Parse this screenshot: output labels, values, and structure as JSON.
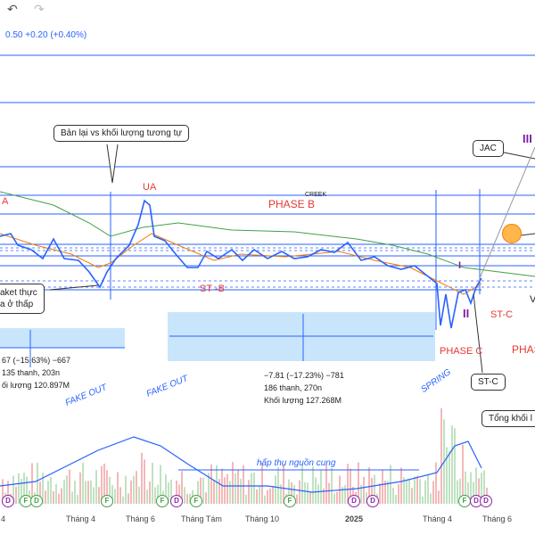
{
  "toolbar": {
    "undo_icon": "undo-icon",
    "redo_icon": "redo-icon"
  },
  "price_change": "0.50  +0.20 (+0.40%)",
  "annotations": {
    "retest": "Bản lại vs khối lượng tương tự",
    "jac": "JAC",
    "baket_line1": "aket thực",
    "baket_line2": "a ở thấp",
    "st_c_box": "ST-C",
    "tong_khoi": "Tổng khối l"
  },
  "labels": {
    "ua": "UA",
    "a": "A",
    "phase_b": "PHASE B",
    "creek": "CREEK",
    "st_b": "ST -B",
    "st_c": "ST-C",
    "phase_c": "PHASE C",
    "phas": "PHAS",
    "three": "III",
    "one": "I",
    "two": "II",
    "v": "V"
  },
  "italic_labels": {
    "fake_out_1": "FAKE OUT",
    "fake_out_2": "FAKE OUT",
    "spring": "SPRING",
    "absorb": "hấp thụ nguồn cung"
  },
  "stats_left": [
    "67 (−15.63%) −667",
    "135 thanh, 203n",
    "ối lượng 120.897M"
  ],
  "stats_mid": [
    "−7.81 (−17.23%) −781",
    "186 thanh, 270n",
    "Khối lượng 127.268M"
  ],
  "x_ticks": [
    "4",
    "Tháng 4",
    "Tháng 6",
    "Tháng Tám",
    "Tháng 10",
    "2025",
    "Tháng 4",
    "Tháng 6"
  ],
  "event_badges": [
    "D",
    "F",
    "D",
    "F",
    "F",
    "D",
    "F",
    "F",
    "D",
    "D",
    "F",
    "D",
    "D"
  ],
  "colors": {
    "price": "#2962ff",
    "ma_orange": "#f57c00",
    "ma_green": "#43a047",
    "accent_red": "#e53935",
    "purple": "#7b1fa2"
  }
}
